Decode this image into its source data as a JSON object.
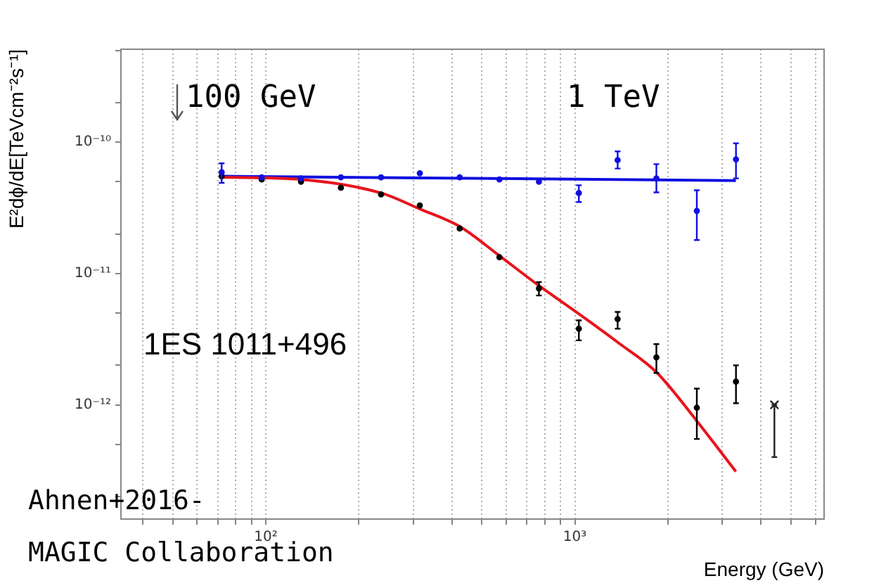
{
  "chart_data": {
    "type": "scatter",
    "xlabel": "Energy (GeV)",
    "ylabel": "E²dϕ/dE[TeVcm⁻²s⁻¹]",
    "log": "xy",
    "grid": "x",
    "xlim": [
      34,
      6400
    ],
    "ylim": [
      1.35e-13,
      5.1e-10
    ],
    "xticks": [
      {
        "value": 40,
        "label": null
      },
      {
        "value": 50,
        "label": null
      },
      {
        "value": 60,
        "label": null
      },
      {
        "value": 70,
        "label": null
      },
      {
        "value": 80,
        "label": null
      },
      {
        "value": 90,
        "label": null
      },
      {
        "value": 100,
        "label": "10²"
      },
      {
        "value": 200,
        "label": null
      },
      {
        "value": 300,
        "label": null
      },
      {
        "value": 400,
        "label": null
      },
      {
        "value": 500,
        "label": null
      },
      {
        "value": 600,
        "label": null
      },
      {
        "value": 700,
        "label": null
      },
      {
        "value": 800,
        "label": null
      },
      {
        "value": 900,
        "label": null
      },
      {
        "value": 1000,
        "label": "10³"
      },
      {
        "value": 2000,
        "label": null
      },
      {
        "value": 3000,
        "label": null
      },
      {
        "value": 4000,
        "label": null
      },
      {
        "value": 5000,
        "label": null
      },
      {
        "value": 6000,
        "label": null
      }
    ],
    "yticks": [
      {
        "value": 2e-13,
        "label": null
      },
      {
        "value": 5e-13,
        "label": null
      },
      {
        "value": 1e-12,
        "label": "10⁻¹²"
      },
      {
        "value": 2e-12,
        "label": null
      },
      {
        "value": 5e-12,
        "label": null
      },
      {
        "value": 1e-11,
        "label": "10⁻¹¹"
      },
      {
        "value": 2e-11,
        "label": null
      },
      {
        "value": 5e-11,
        "label": null
      },
      {
        "value": 1e-10,
        "label": "10⁻¹⁰"
      },
      {
        "value": 2e-10,
        "label": null
      },
      {
        "value": 5e-10,
        "label": null
      }
    ],
    "series": [
      {
        "type": "line",
        "marker": "none",
        "color": "#e8141c",
        "x": [
          72,
          130,
          236,
          315,
          424,
          569,
          764,
          1033,
          1374,
          1836,
          2484,
          3318
        ],
        "values": [
          5.4e-11,
          5.2e-11,
          4.1e-11,
          3.1e-11,
          2.28e-11,
          1.37e-11,
          8.1e-12,
          4.9e-12,
          3e-12,
          1.77e-12,
          7.5e-13,
          3.1e-13
        ]
      },
      {
        "type": "line",
        "marker": "none",
        "color": "#1010e0",
        "x": [
          72,
          3318
        ],
        "values": [
          5.5e-11,
          5.1e-11
        ]
      },
      {
        "marker": "circle",
        "color": "#1010e0",
        "x": [
          72,
          97,
          130,
          175,
          236,
          315,
          424,
          570,
          765,
          1030,
          1375,
          1835,
          2480,
          3320
        ],
        "values": [
          5.9e-11,
          5.4e-11,
          5.3e-11,
          5.4e-11,
          5.4e-11,
          5.8e-11,
          5.4e-11,
          5.2e-11,
          5e-11,
          4.1e-11,
          7.3e-11,
          5.3e-11,
          3e-11,
          7.4e-11
        ],
        "errors": [
          [
            4.9e-11,
            6.9e-11
          ],
          null,
          null,
          null,
          null,
          null,
          null,
          null,
          null,
          [
            3.5e-11,
            4.7e-11
          ],
          [
            6.3e-11,
            8.5e-11
          ],
          [
            4.15e-11,
            6.8e-11
          ],
          [
            1.8e-11,
            4.3e-11
          ],
          [
            5.3e-11,
            9.8e-11
          ]
        ]
      },
      {
        "marker": "circle",
        "color": "#000000",
        "x": [
          72,
          97,
          130,
          175,
          236,
          315,
          424,
          570,
          765,
          1030,
          1375,
          1835,
          2480,
          3320
        ],
        "values": [
          5.5e-11,
          5.2e-11,
          5e-11,
          4.5e-11,
          4e-11,
          3.3e-11,
          2.2e-11,
          1.33e-11,
          7.7e-12,
          3.8e-12,
          4.5e-12,
          2.3e-12,
          9.5e-13,
          1.5e-12
        ],
        "errors": [
          null,
          null,
          null,
          null,
          null,
          null,
          null,
          null,
          [
            6.8e-12,
            8.6e-12
          ],
          [
            3.1e-12,
            4.4e-12
          ],
          [
            3.8e-12,
            5.1e-12
          ],
          [
            1.75e-12,
            2.9e-12
          ],
          [
            5.5e-13,
            1.33e-12
          ],
          [
            1.03e-12,
            2e-12
          ]
        ]
      },
      {
        "color": "#222222",
        "marker": "cross",
        "x": [
          4420
        ],
        "values": [
          1e-12
        ],
        "errors": [
          [
            4e-13,
            1e-12
          ]
        ]
      }
    ],
    "annotations": [
      "100 GeV",
      "1 TeV",
      "1ES 1011+496",
      "Ahnen+2016-\nMAGIC Collaboration"
    ]
  }
}
